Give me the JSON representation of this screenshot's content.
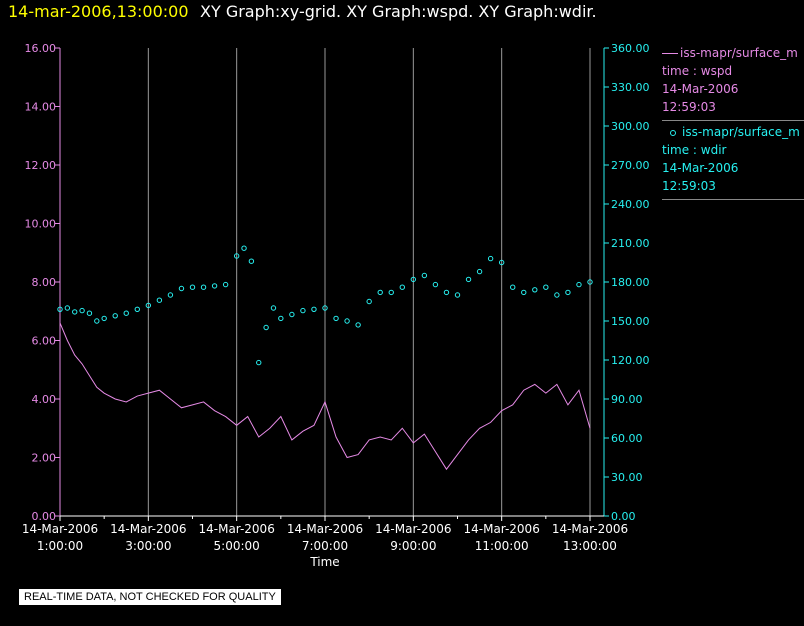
{
  "header": {
    "datetime": "14-mar-2006,13:00:00",
    "titles": "XY Graph:xy-grid.  XY Graph:wspd.  XY Graph:wdir."
  },
  "legend": [
    {
      "symbol": "line",
      "source": "iss-mapr/surface_m",
      "label": "time : wspd",
      "date": "14-Mar-2006",
      "time": "12:59:03",
      "color": "#e58ae5"
    },
    {
      "symbol": "circle",
      "source": "iss-mapr/surface_m",
      "label": "time : wdir",
      "date": "14-Mar-2006",
      "time": "12:59:03",
      "color": "#27f0f0"
    }
  ],
  "notice": "REAL-TIME DATA, NOT CHECKED FOR QUALITY",
  "chart_data": {
    "type": "line",
    "xlabel": "Time",
    "x_ticks": [
      {
        "date": "14-Mar-2006",
        "time": "1:00:00"
      },
      {
        "date": "14-Mar-2006",
        "time": "3:00:00"
      },
      {
        "date": "14-Mar-2006",
        "time": "5:00:00"
      },
      {
        "date": "14-Mar-2006",
        "time": "7:00:00"
      },
      {
        "date": "14-Mar-2006",
        "time": "9:00:00"
      },
      {
        "date": "14-Mar-2006",
        "time": "11:00:00"
      },
      {
        "date": "14-Mar-2006",
        "time": "13:00:00"
      }
    ],
    "xlim": [
      "14-Mar-2006 1:00:00",
      "14-Mar-2006 13:00:00"
    ],
    "grid": true,
    "y_left": {
      "color": "#e58ae5",
      "ylim": [
        0,
        16
      ],
      "ticks": [
        "0.00",
        "2.00",
        "4.00",
        "6.00",
        "8.00",
        "10.00",
        "12.00",
        "14.00",
        "16.00"
      ]
    },
    "y_right": {
      "color": "#27f0f0",
      "ylim": [
        0,
        360
      ],
      "ticks": [
        "0.00",
        "30.00",
        "60.00",
        "90.00",
        "120.00",
        "150.00",
        "180.00",
        "210.00",
        "240.00",
        "270.00",
        "300.00",
        "330.00",
        "360.00"
      ]
    },
    "series": [
      {
        "axis": "left",
        "style": "line",
        "color": "#e58ae5",
        "x": [
          "01:00",
          "01:10",
          "01:20",
          "01:30",
          "01:40",
          "01:50",
          "02:00",
          "02:15",
          "02:30",
          "02:45",
          "03:00",
          "03:15",
          "03:30",
          "03:45",
          "04:00",
          "04:15",
          "04:30",
          "04:45",
          "05:00",
          "05:15",
          "05:30",
          "05:45",
          "06:00",
          "06:15",
          "06:30",
          "06:45",
          "07:00",
          "07:15",
          "07:30",
          "07:45",
          "08:00",
          "08:15",
          "08:30",
          "08:45",
          "09:00",
          "09:15",
          "09:30",
          "09:45",
          "10:00",
          "10:15",
          "10:30",
          "10:45",
          "11:00",
          "11:15",
          "11:30",
          "11:45",
          "12:00",
          "12:15",
          "12:30",
          "12:45",
          "13:00"
        ],
        "values": [
          6.6,
          6.0,
          5.5,
          5.2,
          4.8,
          4.4,
          4.2,
          4.0,
          3.9,
          4.1,
          4.2,
          4.3,
          4.0,
          3.7,
          3.8,
          3.9,
          3.6,
          3.4,
          3.1,
          3.4,
          2.7,
          3.0,
          3.4,
          2.6,
          2.9,
          3.1,
          3.9,
          2.7,
          2.0,
          2.1,
          2.6,
          2.7,
          2.6,
          3.0,
          2.5,
          2.8,
          2.2,
          1.6,
          2.1,
          2.6,
          3.0,
          3.2,
          3.6,
          3.8,
          4.3,
          4.5,
          4.2,
          4.5,
          3.8,
          4.3,
          3.0
        ]
      },
      {
        "axis": "right",
        "style": "circle",
        "color": "#27f0f0",
        "x": [
          "01:00",
          "01:10",
          "01:20",
          "01:30",
          "01:40",
          "01:50",
          "02:00",
          "02:15",
          "02:30",
          "02:45",
          "03:00",
          "03:15",
          "03:30",
          "03:45",
          "04:00",
          "04:15",
          "04:30",
          "04:45",
          "05:00",
          "05:10",
          "05:20",
          "05:30",
          "05:40",
          "05:50",
          "06:00",
          "06:15",
          "06:30",
          "06:45",
          "07:00",
          "07:15",
          "07:30",
          "07:45",
          "08:00",
          "08:15",
          "08:30",
          "08:45",
          "09:00",
          "09:15",
          "09:30",
          "09:45",
          "10:00",
          "10:15",
          "10:30",
          "10:45",
          "11:00",
          "11:15",
          "11:30",
          "11:45",
          "12:00",
          "12:15",
          "12:30",
          "12:45",
          "13:00"
        ],
        "values": [
          159,
          160,
          157,
          158,
          156,
          150,
          152,
          154,
          156,
          159,
          162,
          166,
          170,
          175,
          176,
          176,
          177,
          178,
          200,
          206,
          196,
          118,
          145,
          160,
          152,
          155,
          158,
          159,
          160,
          152,
          150,
          147,
          165,
          172,
          172,
          176,
          182,
          185,
          178,
          172,
          170,
          182,
          188,
          198,
          195,
          176,
          172,
          174,
          176,
          170,
          172,
          178,
          180
        ]
      }
    ]
  }
}
